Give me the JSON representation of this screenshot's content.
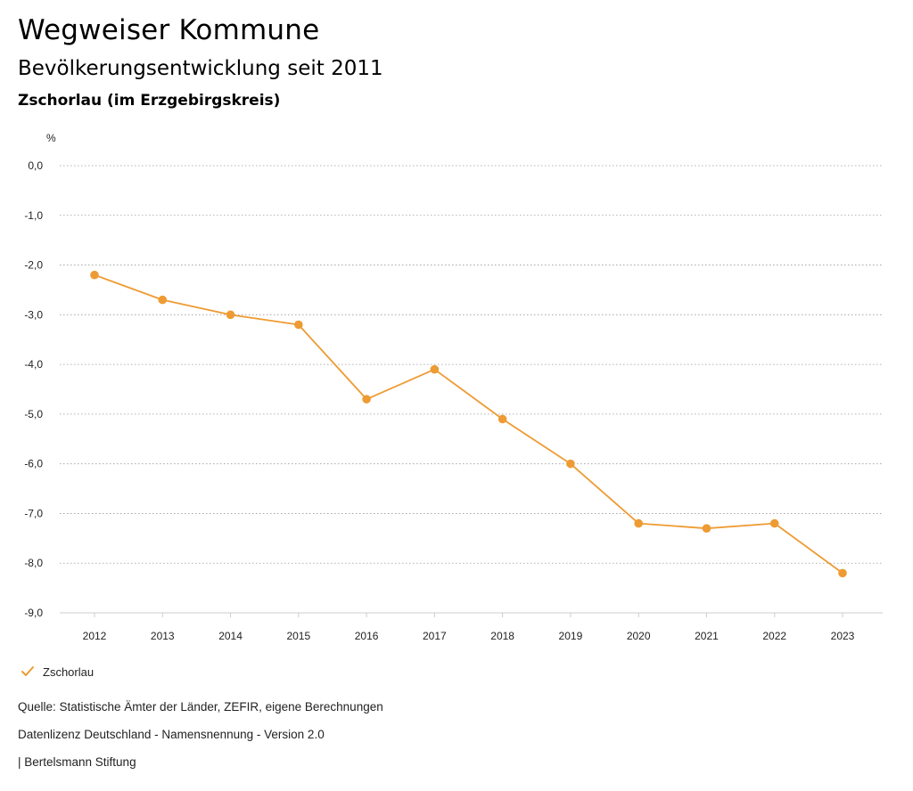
{
  "header": {
    "title": "Wegweiser Kommune",
    "subtitle": "Bevölkerungsentwicklung seit 2011",
    "region": "Zschorlau (im Erzgebirgskreis)"
  },
  "chart_data": {
    "type": "line",
    "ylabel": "%",
    "ylim": [
      -9.0,
      0.0
    ],
    "yticks": [
      "0,0",
      "-1,0",
      "-2,0",
      "-3,0",
      "-4,0",
      "-5,0",
      "-6,0",
      "-7,0",
      "-8,0",
      "-9,0"
    ],
    "ytick_values": [
      0,
      -1,
      -2,
      -3,
      -4,
      -5,
      -6,
      -7,
      -8,
      -9
    ],
    "categories": [
      "2012",
      "2013",
      "2014",
      "2015",
      "2016",
      "2017",
      "2018",
      "2019",
      "2020",
      "2021",
      "2022",
      "2023"
    ],
    "series": [
      {
        "name": "Zschorlau",
        "color": "#ee9b33",
        "values": [
          -2.2,
          -2.7,
          -3.0,
          -3.2,
          -4.7,
          -4.1,
          -5.1,
          -6.0,
          -7.2,
          -7.3,
          -7.2,
          -8.2
        ]
      }
    ],
    "grid": true,
    "grid_style": "dotted",
    "legend_placement": "bottom-left"
  },
  "legend": {
    "icon": "checkmark-icon",
    "label": "Zschorlau"
  },
  "footer": {
    "source": "Quelle: Statistische Ämter der Länder, ZEFIR, eigene Berechnungen",
    "license": "Datenlizenz Deutschland - Namensnennung - Version 2.0",
    "publisher": "| Bertelsmann Stiftung"
  }
}
